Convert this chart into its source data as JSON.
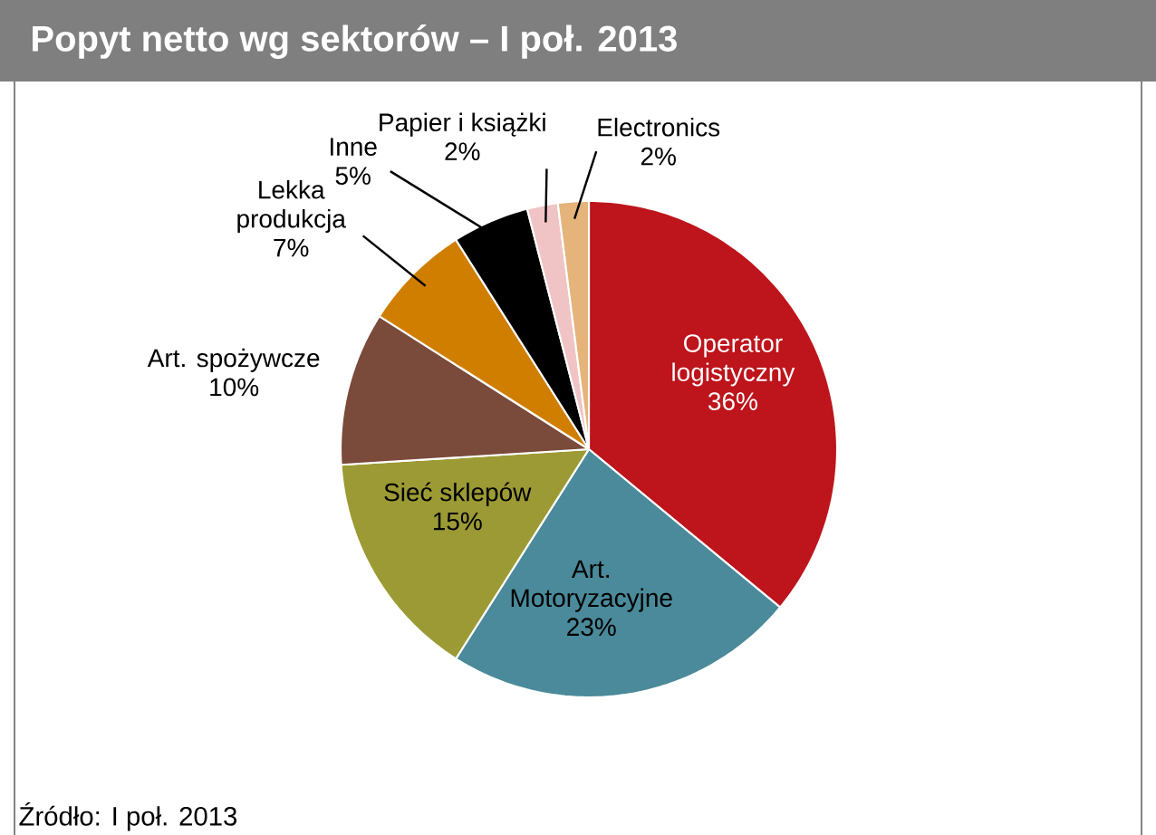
{
  "chart_data": {
    "type": "pie",
    "title": "Popyt netto wg sektorów – I poł. 2013",
    "categories": [
      "Operator logistyczny",
      "Art. Motoryzacyjne",
      "Sieć sklepów",
      "Art. spożywcze",
      "Lekka produkcja",
      "Inne",
      "Papier i książki",
      "Electronics"
    ],
    "values": [
      36,
      23,
      15,
      10,
      7,
      5,
      2,
      2
    ],
    "colors": [
      "#be141c",
      "#4a8a9a",
      "#9c9a34",
      "#7a4a3a",
      "#d07e00",
      "#000000",
      "#f0c4c4",
      "#e4b47a"
    ],
    "value_labels": [
      "36%",
      "23%",
      "15%",
      "10%",
      "7%",
      "5%",
      "2%",
      "2%"
    ],
    "annotations": [
      "Źródło: I poł. 2013"
    ]
  }
}
